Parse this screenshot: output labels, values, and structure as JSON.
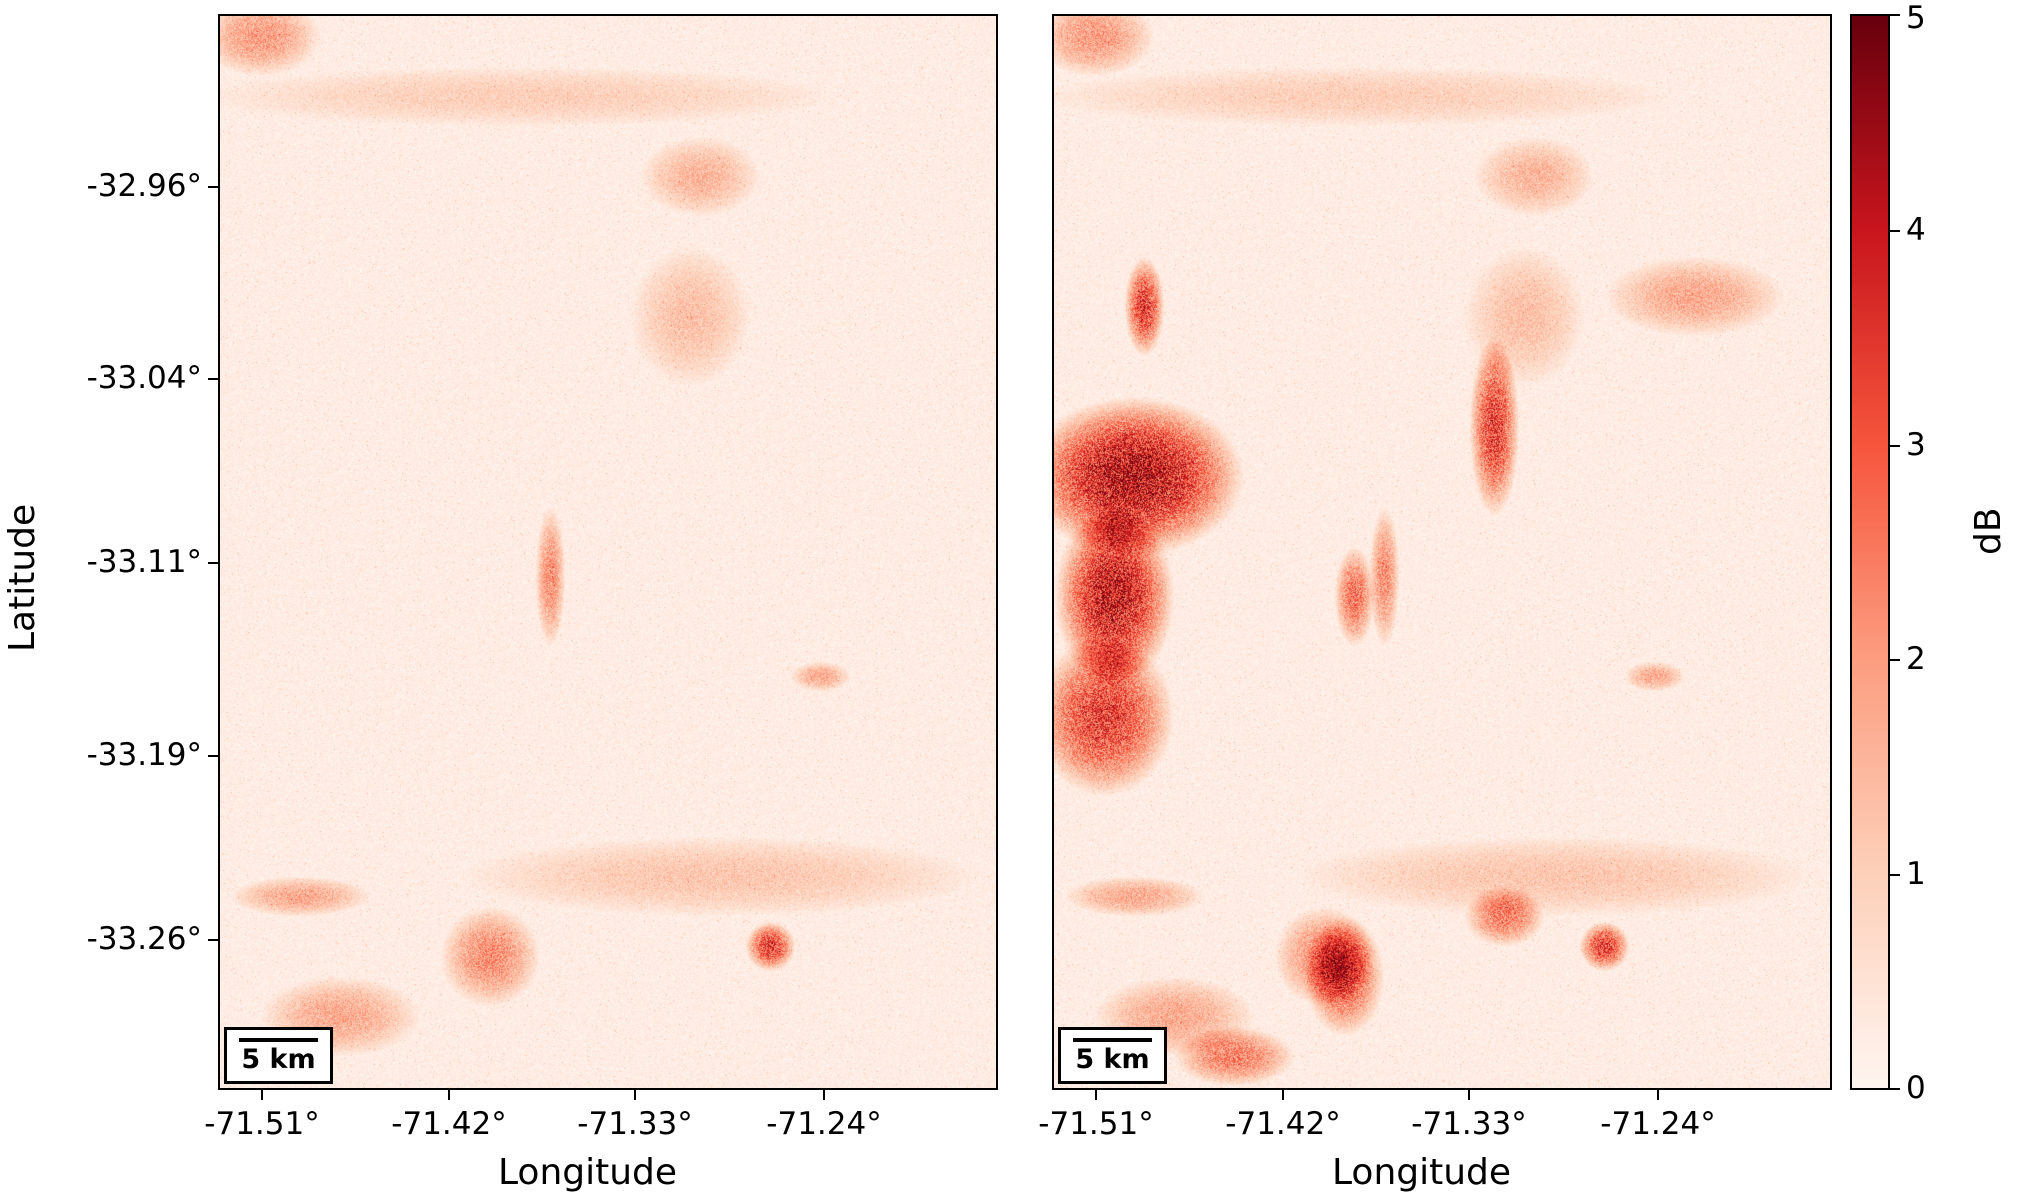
{
  "map": {
    "y_axis": {
      "title": "Latitude",
      "ticks": [
        "-32.96°",
        "-33.04°",
        "-33.11°",
        "-33.19°",
        "-33.26°"
      ]
    },
    "x_axis": {
      "title": "Longitude",
      "ticks": [
        "-71.51°",
        "-71.42°",
        "-71.33°",
        "-71.24°"
      ]
    },
    "scale_bar_label": "5 km",
    "colorbar": {
      "title": "dB",
      "ticks": [
        "0",
        "1",
        "2",
        "3",
        "4",
        "5"
      ],
      "colormap": "Reds",
      "range": [
        0,
        5
      ],
      "colors": [
        "#fff5f0",
        "#fdd0b9",
        "#fc9d80",
        "#f6553c",
        "#c8151d",
        "#67000d"
      ]
    },
    "panels": [
      {
        "name": "left",
        "description_type": "low-change"
      },
      {
        "name": "right",
        "description_type": "high-change"
      }
    ]
  }
}
